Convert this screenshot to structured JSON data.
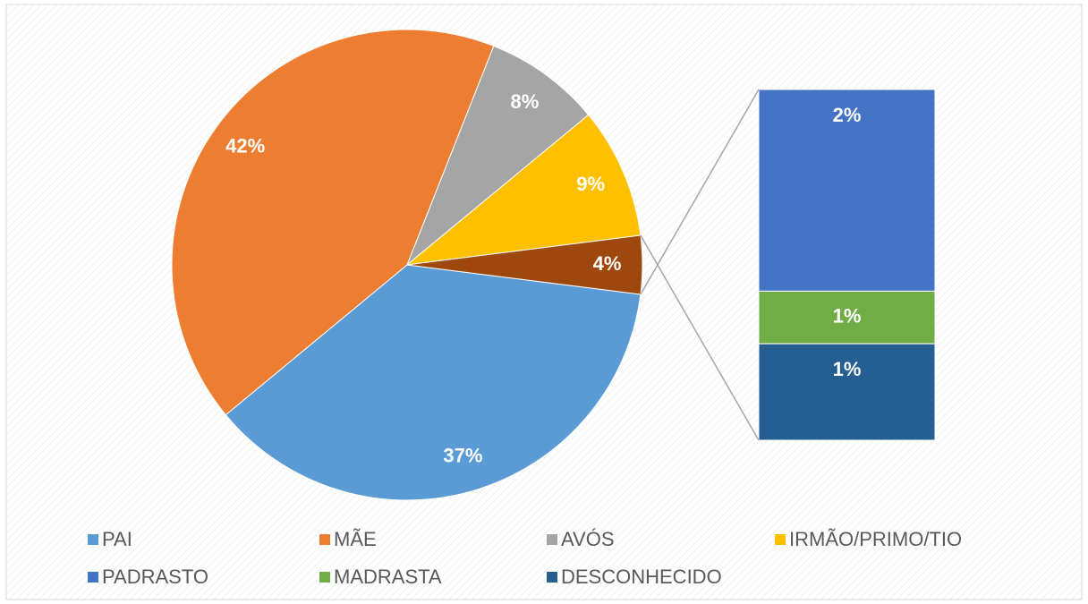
{
  "chart_data": {
    "type": "pie",
    "categories": [
      "PAI",
      "MÃE",
      "AVÓS",
      "IRMÃO/PRIMO/TIO",
      null
    ],
    "values": [
      37,
      42,
      8,
      9,
      4
    ],
    "value_labels": [
      "37%",
      "42%",
      "8%",
      "9%",
      "4%"
    ],
    "colors": [
      "#5b9bd5",
      "#ed7d31",
      "#a5a5a5",
      "#ffc000",
      "#9e480e"
    ],
    "breakdown": {
      "categories": [
        "PADRASTO",
        "MADRASTA",
        "DESCONHECIDO"
      ],
      "values": [
        2.3,
        0.6,
        1.1
      ],
      "value_labels": [
        "2%",
        "1%",
        "1%"
      ],
      "colors": [
        "#4472c4",
        "#70ad47",
        "#255e91"
      ]
    },
    "legend": "bottom"
  }
}
